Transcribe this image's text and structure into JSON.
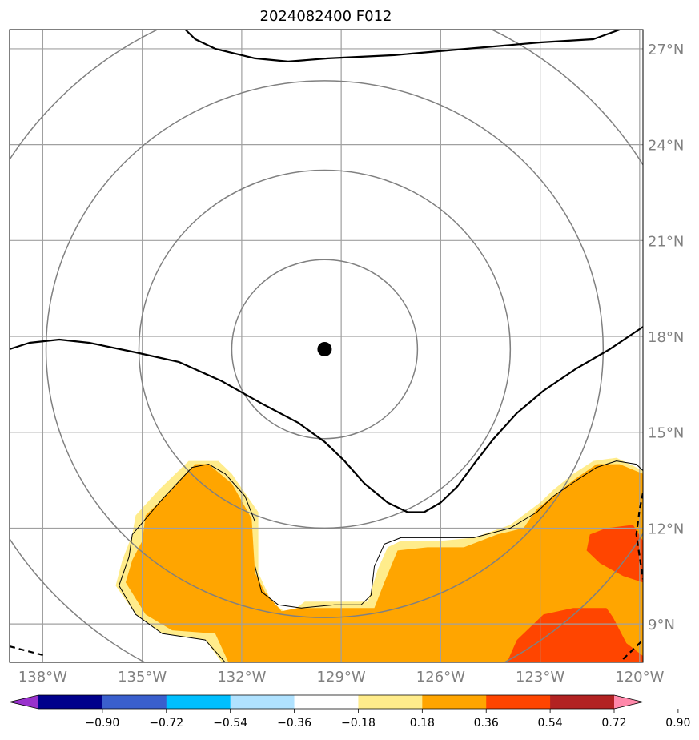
{
  "chart_data": {
    "type": "contour",
    "title": "2024082400 F012",
    "projection": "lat-lon map",
    "x_axis": {
      "range": [
        -139.0,
        -119.9
      ],
      "ticks": [
        -138,
        -135,
        -132,
        -129,
        -126,
        -123,
        -120
      ],
      "tick_labels": [
        "138°W",
        "135°W",
        "132°W",
        "129°W",
        "126°W",
        "123°W",
        "120°W"
      ]
    },
    "y_axis": {
      "range": [
        7.8,
        27.6
      ],
      "ticks": [
        9,
        12,
        15,
        18,
        21,
        24,
        27
      ],
      "tick_labels": [
        "9°N",
        "12°N",
        "15°N",
        "18°N",
        "21°N",
        "24°N",
        "27°N"
      ],
      "side": "right"
    },
    "grid": true,
    "center_point": {
      "lon": -129.5,
      "lat": 17.6
    },
    "range_rings_radius_deg": [
      2.8,
      5.6,
      8.4,
      11.2
    ],
    "colorbar": {
      "orientation": "horizontal",
      "extend": "both",
      "levels": [
        "−0.90",
        "−0.72",
        "−0.54",
        "−0.36",
        "−0.18",
        "0.18",
        "0.36",
        "0.54",
        "0.72",
        "0.90"
      ],
      "colors": [
        "#9932CC",
        "#00008B",
        "#3A5FCD",
        "#00BFFF",
        "#B0E2FF",
        "#FFFFFF",
        "#FFEC8B",
        "#FFA500",
        "#FF4500",
        "#B22222",
        "#FF88AA"
      ]
    },
    "filled_regions": [
      {
        "name": "shade-0.18-0.36",
        "color": "#FFEC8B",
        "points": [
          [
            -139,
            7.8
          ],
          [
            -119.9,
            7.8
          ],
          [
            -119.9,
            13.8
          ],
          [
            -120.7,
            14.2
          ],
          [
            -121.4,
            14.1
          ],
          [
            -122,
            13.7
          ],
          [
            -122.6,
            13.2
          ],
          [
            -123,
            12.8
          ],
          [
            -123.9,
            12.1
          ],
          [
            -125,
            11.7
          ],
          [
            -126,
            11.6
          ],
          [
            -127.2,
            11.6
          ],
          [
            -127.6,
            11.4
          ],
          [
            -127.9,
            10.7
          ],
          [
            -128.2,
            9.7
          ],
          [
            -129,
            9.7
          ],
          [
            -130.1,
            9.7
          ],
          [
            -130.6,
            9.3
          ],
          [
            -131.1,
            9.7
          ],
          [
            -131.5,
            10.6
          ],
          [
            -131.5,
            12.5
          ],
          [
            -132.3,
            13.7
          ],
          [
            -132.7,
            14.1
          ],
          [
            -133.6,
            14.1
          ],
          [
            -134.5,
            13.2
          ],
          [
            -135.2,
            12.4
          ],
          [
            -135.3,
            11.8
          ],
          [
            -135.6,
            11
          ],
          [
            -135.8,
            10.2
          ],
          [
            -135.2,
            9.3
          ],
          [
            -134.4,
            8.7
          ],
          [
            -133.1,
            8.5
          ],
          [
            -132.6,
            7.8
          ],
          [
            -139,
            7.8
          ]
        ]
      },
      {
        "name": "shade-0.36-0.54",
        "color": "#FFA500",
        "points": [
          [
            -132.4,
            7.8
          ],
          [
            -119.9,
            7.8
          ],
          [
            -119.9,
            13.7
          ],
          [
            -120.6,
            14.0
          ],
          [
            -121.3,
            14.0
          ],
          [
            -122,
            13.5
          ],
          [
            -122.6,
            13.0
          ],
          [
            -123.1,
            12.6
          ],
          [
            -123.5,
            12.0
          ],
          [
            -124.3,
            11.8
          ],
          [
            -125.3,
            11.4
          ],
          [
            -126.4,
            11.4
          ],
          [
            -127.3,
            11.3
          ],
          [
            -127.7,
            10.3
          ],
          [
            -128,
            9.5
          ],
          [
            -129.2,
            9.5
          ],
          [
            -130.3,
            9.5
          ],
          [
            -130.8,
            9.4
          ],
          [
            -131.3,
            10
          ],
          [
            -131.6,
            10.6
          ],
          [
            -131.7,
            12.3
          ],
          [
            -132.3,
            13.4
          ],
          [
            -133,
            14.0
          ],
          [
            -133.4,
            14.0
          ],
          [
            -134.2,
            13.1
          ],
          [
            -134.9,
            12.4
          ],
          [
            -135,
            11.6
          ],
          [
            -135.3,
            11
          ],
          [
            -135.5,
            10.3
          ],
          [
            -134.9,
            9.3
          ],
          [
            -134.1,
            8.8
          ],
          [
            -132.8,
            8.7
          ],
          [
            -132.4,
            7.8
          ]
        ]
      },
      {
        "name": "shade-0.54-0.72-east",
        "color": "#FF4500",
        "points": [
          [
            -121,
            12.0
          ],
          [
            -120.2,
            12.1
          ],
          [
            -119.9,
            11.6
          ],
          [
            -119.9,
            10.3
          ],
          [
            -120.5,
            10.5
          ],
          [
            -121.2,
            10.9
          ],
          [
            -121.6,
            11.3
          ],
          [
            -121.5,
            11.8
          ],
          [
            -121,
            12.0
          ]
        ]
      },
      {
        "name": "shade-0.54-0.72-south",
        "color": "#FF4500",
        "points": [
          [
            -124.0,
            7.8
          ],
          [
            -119.9,
            7.8
          ],
          [
            -119.9,
            8.0
          ],
          [
            -120.4,
            8.4
          ],
          [
            -120.8,
            9.2
          ],
          [
            -121,
            9.5
          ],
          [
            -122,
            9.5
          ],
          [
            -122.9,
            9.3
          ],
          [
            -123.7,
            8.5
          ],
          [
            -124.0,
            7.8
          ]
        ]
      }
    ],
    "contour_lines": [
      {
        "name": "boundary-west",
        "color": "#000000",
        "style": "solid",
        "points": [
          [
            -132.5,
            7.8
          ],
          [
            -133.1,
            8.5
          ],
          [
            -134.4,
            8.7
          ],
          [
            -135.2,
            9.3
          ],
          [
            -135.7,
            10.2
          ],
          [
            -135.4,
            11.1
          ],
          [
            -135.3,
            11.8
          ],
          [
            -134.4,
            12.9
          ],
          [
            -133.5,
            13.9
          ],
          [
            -133,
            14.0
          ],
          [
            -132.5,
            13.7
          ],
          [
            -131.9,
            13.0
          ],
          [
            -131.6,
            12.2
          ],
          [
            -131.6,
            10.8
          ],
          [
            -131.4,
            10.0
          ],
          [
            -130.9,
            9.6
          ],
          [
            -130.2,
            9.5
          ],
          [
            -129.2,
            9.6
          ],
          [
            -128.4,
            9.6
          ],
          [
            -128.1,
            9.9
          ],
          [
            -128.0,
            10.8
          ],
          [
            -127.7,
            11.5
          ],
          [
            -127.2,
            11.7
          ],
          [
            -126.1,
            11.7
          ],
          [
            -125.0,
            11.7
          ],
          [
            -123.9,
            12.0
          ],
          [
            -123.1,
            12.5
          ],
          [
            -122.6,
            13.0
          ],
          [
            -121.9,
            13.5
          ],
          [
            -121.3,
            13.9
          ],
          [
            -120.7,
            14.1
          ],
          [
            -120.1,
            14.0
          ],
          [
            -119.9,
            13.8
          ]
        ]
      },
      {
        "name": "isoline-north",
        "color": "#000000",
        "style": "solid",
        "points": [
          [
            -133.7,
            27.6
          ],
          [
            -133.4,
            27.3
          ],
          [
            -132.8,
            27.0
          ],
          [
            -131.6,
            26.7
          ],
          [
            -130.6,
            26.6
          ],
          [
            -129.4,
            26.7
          ],
          [
            -127.4,
            26.8
          ],
          [
            -125.2,
            27.0
          ],
          [
            -123,
            27.2
          ],
          [
            -121.4,
            27.3
          ],
          [
            -120.6,
            27.6
          ]
        ]
      },
      {
        "name": "isoline-central",
        "color": "#000000",
        "style": "solid",
        "points": [
          [
            -139,
            17.6
          ],
          [
            -138.4,
            17.8
          ],
          [
            -137.5,
            17.9
          ],
          [
            -136.6,
            17.8
          ],
          [
            -135.2,
            17.5
          ],
          [
            -133.9,
            17.2
          ],
          [
            -132.6,
            16.6
          ],
          [
            -131.4,
            15.9
          ],
          [
            -130.3,
            15.3
          ],
          [
            -129.5,
            14.7
          ],
          [
            -128.9,
            14.1
          ],
          [
            -128.3,
            13.4
          ],
          [
            -127.6,
            12.8
          ],
          [
            -127,
            12.5
          ],
          [
            -126.5,
            12.5
          ],
          [
            -126,
            12.8
          ],
          [
            -125.5,
            13.3
          ],
          [
            -125,
            14.0
          ],
          [
            -124.4,
            14.8
          ],
          [
            -123.7,
            15.6
          ],
          [
            -122.9,
            16.3
          ],
          [
            -121.9,
            17.0
          ],
          [
            -120.9,
            17.6
          ],
          [
            -119.9,
            18.3
          ]
        ]
      },
      {
        "name": "isoline-negative-sw",
        "color": "#000000",
        "style": "dashed",
        "points": [
          [
            -139,
            8.3
          ],
          [
            -137.9,
            8.0
          ]
        ]
      },
      {
        "name": "isoline-negative-east",
        "color": "#000000",
        "style": "dashed",
        "points": [
          [
            -119.9,
            13.1
          ],
          [
            -120.0,
            12.6
          ],
          [
            -120.1,
            11.8
          ],
          [
            -119.9,
            10.4
          ]
        ]
      },
      {
        "name": "isoline-negative-se",
        "color": "#000000",
        "style": "dashed",
        "points": [
          [
            -120.5,
            7.9
          ],
          [
            -119.9,
            8.5
          ]
        ]
      }
    ]
  }
}
